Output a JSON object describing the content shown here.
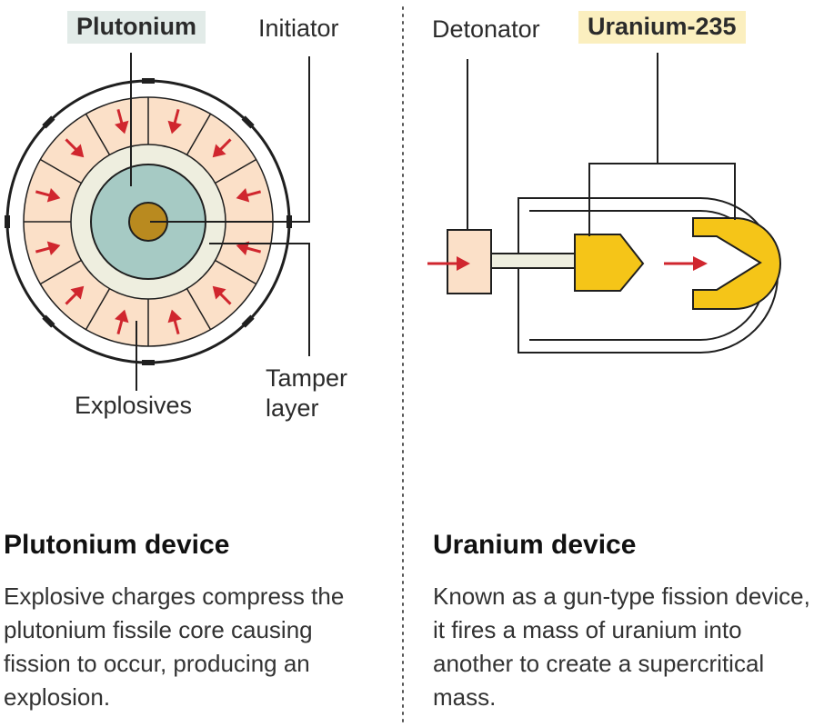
{
  "colors": {
    "line": "#1f1f1f",
    "explosive_fill": "#fbe0c8",
    "tamper_fill": "#eeeedf",
    "plutonium_core": "#a6cac4",
    "initiator": "#b98a1f",
    "uranium": "#f5c518",
    "arrow": "#d0262e",
    "plutonium_label_bg": "#e2ebe8",
    "uranium_label_bg": "#fbefbf",
    "divider": "#555555"
  },
  "plutonium_diagram": {
    "label_plutonium": "Plutonium",
    "label_initiator": "Initiator",
    "label_explosives": "Explosives",
    "label_tamper": "Tamper layer"
  },
  "uranium_diagram": {
    "label_detonator": "Detonator",
    "label_uranium": "Uranium-235"
  },
  "plutonium_section": {
    "heading": "Plutonium device",
    "body": "Explosive charges compress the plutonium fissile core causing fission to occur, producing an explosion."
  },
  "uranium_section": {
    "heading": "Uranium device",
    "body": "Known as a gun-type fission device, it fires a mass of uranium into another to create a supercritical mass."
  }
}
